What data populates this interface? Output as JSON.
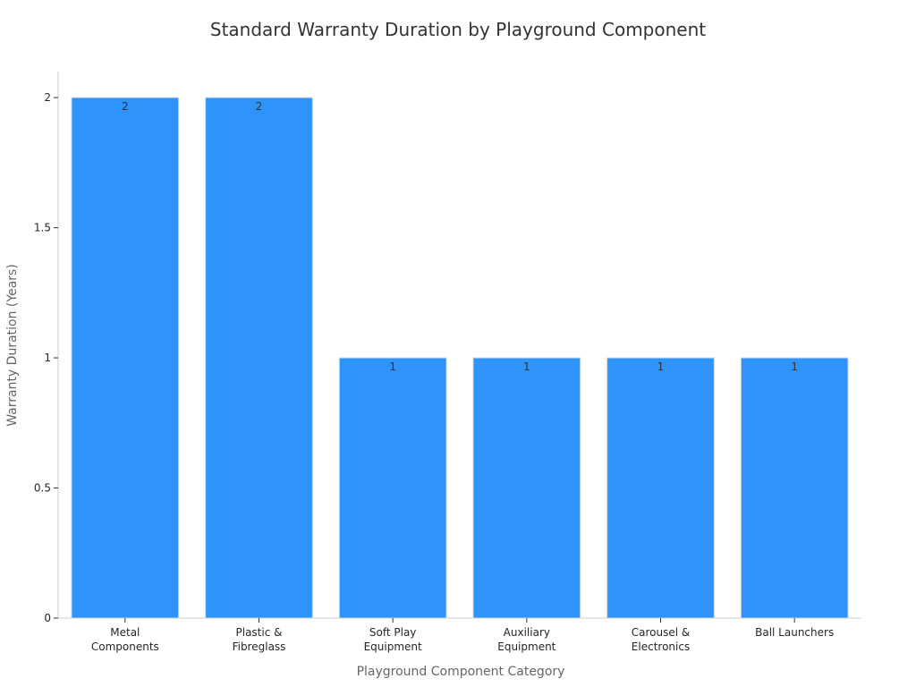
{
  "chart_data": {
    "type": "bar",
    "title": "Standard Warranty Duration by Playground Component",
    "xlabel": "Playground Component Category",
    "ylabel": "Warranty Duration (Years)",
    "categories": [
      [
        "Metal",
        "Components"
      ],
      [
        "Plastic &",
        "Fibreglass"
      ],
      [
        "Soft Play",
        "Equipment"
      ],
      [
        "Auxiliary",
        "Equipment"
      ],
      [
        "Carousel &",
        "Electronics"
      ],
      [
        "Ball Launchers"
      ]
    ],
    "values": [
      2,
      2,
      1,
      1,
      1,
      1
    ],
    "value_labels": [
      "2",
      "2",
      "1",
      "1",
      "1",
      "1"
    ],
    "ylim": [
      0,
      2.1
    ],
    "yticks": [
      0,
      0.5,
      1,
      1.5,
      2
    ],
    "ytick_labels": [
      "0",
      "0.5",
      "1",
      "1.5",
      "2"
    ],
    "grid": false,
    "legend": "none",
    "colors": {
      "bar": "#2e93fa",
      "bar_edge": "#d0d8e0",
      "axis": "#cccccc"
    }
  }
}
